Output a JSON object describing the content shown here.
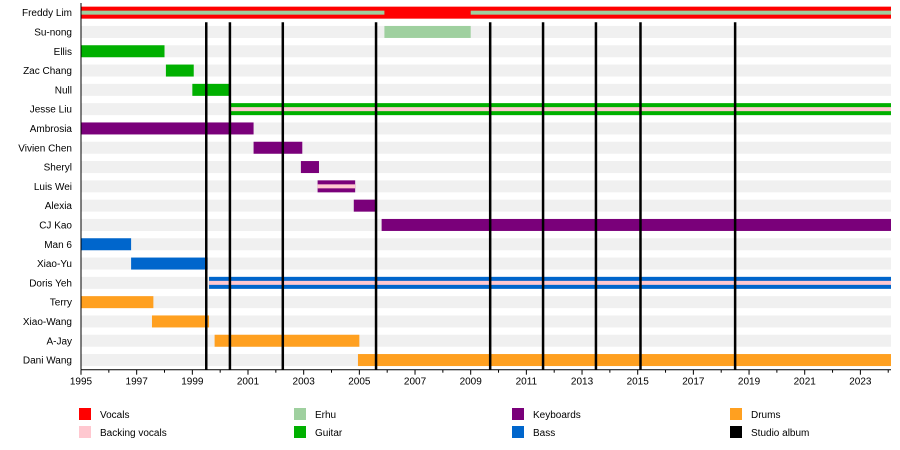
{
  "chart_data": {
    "type": "timeline",
    "xlim": [
      1995,
      2024.1
    ],
    "x_ticks": [
      1995,
      1997,
      1999,
      2001,
      2003,
      2005,
      2007,
      2009,
      2011,
      2013,
      2015,
      2017,
      2019,
      2021,
      2023
    ],
    "colors": {
      "Vocals": "#ff0000",
      "Backing vocals": "#ffc8d0",
      "Erhu": "#9fd09f",
      "Guitar": "#00b000",
      "Keyboards": "#7a007a",
      "Bass": "#0066cc",
      "Drums": "#ffa020",
      "Studio album": "#000000"
    },
    "members": [
      {
        "name": "Freddy Lim",
        "roles": [
          "Vocals",
          "Erhu"
        ],
        "spans": [
          {
            "role": "Vocals",
            "start": 1995,
            "end": 2024.1
          },
          {
            "role": "Erhu",
            "start": 1995,
            "end": 2005.9,
            "secondary": true
          },
          {
            "role": "Erhu",
            "start": 2009.0,
            "end": 2024.1,
            "secondary": true
          }
        ]
      },
      {
        "name": "Su-nong",
        "spans": [
          {
            "role": "Erhu",
            "start": 2005.9,
            "end": 2009.0
          }
        ]
      },
      {
        "name": "Ellis",
        "spans": [
          {
            "role": "Guitar",
            "start": 1995,
            "end": 1998.0
          }
        ]
      },
      {
        "name": "Zac Chang",
        "spans": [
          {
            "role": "Guitar",
            "start": 1998.05,
            "end": 1999.05
          }
        ]
      },
      {
        "name": "Null",
        "spans": [
          {
            "role": "Guitar",
            "start": 1999.0,
            "end": 2000.35
          }
        ]
      },
      {
        "name": "Jesse Liu",
        "spans": [
          {
            "role": "Guitar",
            "start": 2000.35,
            "end": 2024.1
          },
          {
            "role": "Backing vocals",
            "start": 2000.35,
            "end": 2024.1,
            "secondary": true
          }
        ]
      },
      {
        "name": "Ambrosia",
        "spans": [
          {
            "role": "Keyboards",
            "start": 1995,
            "end": 2001.2
          }
        ]
      },
      {
        "name": "Vivien Chen",
        "spans": [
          {
            "role": "Keyboards",
            "start": 2001.2,
            "end": 2002.95
          }
        ]
      },
      {
        "name": "Sheryl",
        "spans": [
          {
            "role": "Keyboards",
            "start": 2002.9,
            "end": 2003.55
          }
        ]
      },
      {
        "name": "Luis Wei",
        "spans": [
          {
            "role": "Keyboards",
            "start": 2003.5,
            "end": 2004.85
          },
          {
            "role": "Backing vocals",
            "start": 2003.5,
            "end": 2004.85,
            "secondary": true
          }
        ]
      },
      {
        "name": "Alexia",
        "spans": [
          {
            "role": "Keyboards",
            "start": 2004.8,
            "end": 2005.6
          }
        ]
      },
      {
        "name": "CJ Kao",
        "spans": [
          {
            "role": "Keyboards",
            "start": 2005.8,
            "end": 2024.1
          }
        ]
      },
      {
        "name": "Man 6",
        "spans": [
          {
            "role": "Bass",
            "start": 1995,
            "end": 1996.8
          }
        ]
      },
      {
        "name": "Xiao-Yu",
        "spans": [
          {
            "role": "Bass",
            "start": 1996.8,
            "end": 1999.55
          }
        ]
      },
      {
        "name": "Doris Yeh",
        "spans": [
          {
            "role": "Bass",
            "start": 1999.6,
            "end": 2024.1
          },
          {
            "role": "Backing vocals",
            "start": 1999.6,
            "end": 2024.1,
            "secondary": true
          }
        ]
      },
      {
        "name": "Terry",
        "spans": [
          {
            "role": "Drums",
            "start": 1995,
            "end": 1997.6
          }
        ]
      },
      {
        "name": "Xiao-Wang",
        "spans": [
          {
            "role": "Drums",
            "start": 1997.55,
            "end": 1999.6
          }
        ]
      },
      {
        "name": "A-Jay",
        "spans": [
          {
            "role": "Drums",
            "start": 1999.8,
            "end": 2005.0
          }
        ]
      },
      {
        "name": "Dani Wang",
        "spans": [
          {
            "role": "Drums",
            "start": 2004.95,
            "end": 2024.1
          }
        ]
      }
    ],
    "albums": [
      1999.5,
      2000.35,
      2002.25,
      2005.6,
      2009.7,
      2011.6,
      2013.5,
      2015.1,
      2018.5
    ],
    "legend": [
      "Vocals",
      "Backing vocals",
      "Erhu",
      "Guitar",
      "Keyboards",
      "Bass",
      "Drums",
      "Studio album"
    ],
    "legend_placement": "bottom"
  }
}
